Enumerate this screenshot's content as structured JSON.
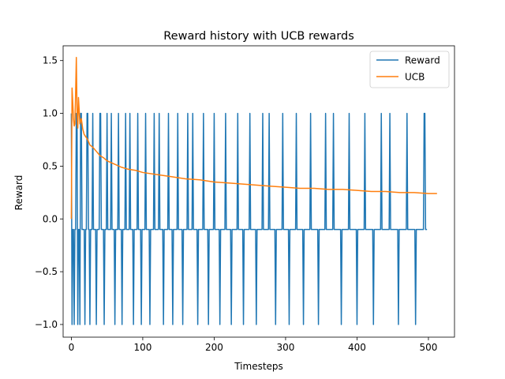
{
  "chart_data": {
    "type": "line",
    "title": "Reward history with UCB rewards",
    "xlabel": "Timesteps",
    "ylabel": "Reward",
    "xlim": [
      -11.5,
      536.5
    ],
    "ylim": [
      -1.12,
      1.64
    ],
    "xticks": [
      0,
      100,
      200,
      300,
      400,
      500
    ],
    "xtick_labels": [
      "0",
      "100",
      "200",
      "300",
      "400",
      "500"
    ],
    "yticks": [
      -1.0,
      -0.5,
      0.0,
      0.5,
      1.0,
      1.5
    ],
    "ytick_labels": [
      "−1.0",
      "−0.5",
      "0.0",
      "0.5",
      "1.0",
      "1.5"
    ],
    "grid": false,
    "legend_position": "upper-right",
    "series": [
      {
        "name": "Reward",
        "color": "#1f77b4",
        "x_start": 0,
        "x_step": 1,
        "values": [
          1,
          -1,
          -0.1,
          -0.1,
          -1,
          -0.1,
          -0.1,
          1,
          1,
          -1,
          -0.1,
          -0.1,
          -1,
          1,
          1,
          -0.1,
          -0.1,
          -0.1,
          -0.1,
          -1,
          -0.1,
          -0.1,
          1,
          1,
          -0.1,
          -0.1,
          -1,
          -0.1,
          -0.1,
          -0.1,
          1,
          -0.1,
          -0.1,
          -0.1,
          -0.1,
          -1,
          -0.1,
          -0.1,
          -0.1,
          -0.1,
          1,
          1,
          -0.1,
          -0.1,
          -0.1,
          -0.1,
          -1,
          -0.1,
          -0.1,
          -0.1,
          1,
          -0.1,
          -0.1,
          -0.1,
          -0.1,
          -0.1,
          1,
          -0.1,
          -0.1,
          -0.1,
          -0.1,
          -1,
          -0.1,
          -0.1,
          -0.1,
          -0.1,
          1,
          -0.1,
          -0.1,
          -0.1,
          -0.1,
          -1,
          -0.1,
          -0.1,
          -0.1,
          -0.1,
          1,
          -0.1,
          -0.1,
          -0.1,
          -0.1,
          -0.1,
          1,
          -0.1,
          -0.1,
          -0.1,
          -0.1,
          -1,
          -0.1,
          -0.1,
          -0.1,
          -0.1,
          -0.1,
          1,
          -0.1,
          -0.1,
          -0.1,
          -0.1,
          -1,
          -0.1,
          -0.1,
          -0.1,
          -0.1,
          -0.1,
          1,
          -0.1,
          -0.1,
          -0.1,
          -0.1,
          -0.1,
          -1,
          -0.1,
          -0.1,
          -0.1,
          -0.1,
          -0.1,
          1,
          -0.1,
          -0.1,
          -0.1,
          -0.1,
          -0.1,
          -0.1,
          1,
          -0.1,
          -0.1,
          -0.1,
          -0.1,
          -0.1,
          -1,
          -0.1,
          -0.1,
          -0.1,
          -0.1,
          -0.1,
          -0.1,
          1,
          -0.1,
          -0.1,
          -0.1,
          -0.1,
          -0.1,
          -1,
          -0.1,
          -0.1,
          -0.1,
          -0.1,
          -0.1,
          -0.1,
          1,
          -0.1,
          -0.1,
          -0.1,
          -0.1,
          -0.1,
          -0.1,
          -1,
          -0.1,
          -0.1,
          -0.1,
          -0.1,
          -0.1,
          -0.1,
          1,
          -0.1,
          -0.1,
          -0.1,
          -0.1,
          -0.1,
          -0.1,
          1,
          -0.1,
          -0.1,
          -0.1,
          -0.1,
          -0.1,
          -0.1,
          -1,
          -0.1,
          -0.1,
          -0.1,
          -0.1,
          -0.1,
          -0.1,
          -0.1,
          1,
          -0.1,
          -0.1,
          -0.1,
          -0.1,
          -0.1,
          -0.1,
          -1,
          -0.1,
          -0.1,
          -0.1,
          -0.1,
          -0.1,
          -0.1,
          -0.1,
          1,
          -0.1,
          -0.1,
          -0.1,
          -0.1,
          -0.1,
          -0.1,
          -0.1,
          -1,
          -0.1,
          -0.1,
          -0.1,
          -0.1,
          -0.1,
          -0.1,
          -0.1,
          1,
          -0.1,
          -0.1,
          -0.1,
          -0.1,
          -0.1,
          -0.1,
          -0.1,
          -1,
          -0.1,
          -0.1,
          -0.1,
          -0.1,
          -0.1,
          -0.1,
          -0.1,
          -0.1,
          1,
          -0.1,
          -0.1,
          -0.1,
          -0.1,
          -0.1,
          -0.1,
          -0.1,
          -1,
          -0.1,
          -0.1,
          -0.1,
          -0.1,
          -0.1,
          -0.1,
          -0.1,
          -0.1,
          1,
          -0.1,
          -0.1,
          -0.1,
          -0.1,
          -0.1,
          -0.1,
          -0.1,
          -0.1,
          -1,
          -0.1,
          -0.1,
          -0.1,
          -0.1,
          -0.1,
          -0.1,
          -0.1,
          -0.1,
          1,
          -0.1,
          -0.1,
          -0.1,
          -0.1,
          -0.1,
          -0.1,
          -0.1,
          -0.1,
          1,
          -0.1,
          -0.1,
          -0.1,
          -0.1,
          -0.1,
          -0.1,
          -0.1,
          -0.1,
          -1,
          -0.1,
          -0.1,
          -0.1,
          -0.1,
          -0.1,
          -0.1,
          -0.1,
          -0.1,
          -0.1,
          1,
          -0.1,
          -0.1,
          -0.1,
          -0.1,
          -0.1,
          -0.1,
          -0.1,
          -0.1,
          -1,
          -0.1,
          -0.1,
          -0.1,
          -0.1,
          -0.1,
          -0.1,
          -0.1,
          -0.1,
          -0.1,
          1,
          -0.1,
          -0.1,
          -0.1,
          -0.1,
          -0.1,
          -0.1,
          -0.1,
          -0.1,
          -0.1,
          -1,
          -0.1,
          -0.1,
          -0.1,
          -0.1,
          -0.1,
          -0.1,
          -0.1,
          -0.1,
          -0.1,
          1,
          -0.1,
          -0.1,
          -0.1,
          -0.1,
          -0.1,
          -0.1,
          -0.1,
          -0.1,
          -0.1,
          -0.1,
          -1,
          -0.1,
          -0.1,
          -0.1,
          -0.1,
          -0.1,
          -0.1,
          -0.1,
          -0.1,
          -0.1,
          1,
          -0.1,
          -0.1,
          -0.1,
          -0.1,
          -0.1,
          -0.1,
          -0.1,
          -0.1,
          -0.1,
          -0.1,
          1,
          -0.1,
          -0.1,
          -0.1,
          -0.1,
          -0.1,
          -0.1,
          -0.1,
          -0.1,
          -0.1,
          -0.1,
          -1,
          -0.1,
          -0.1,
          -0.1,
          -0.1,
          -0.1,
          -0.1,
          -0.1,
          -0.1,
          -0.1,
          -0.1,
          1,
          -0.1,
          -0.1,
          -0.1,
          -0.1,
          -0.1,
          -0.1,
          -0.1,
          -0.1,
          -0.1,
          -0.1,
          -1,
          -0.1,
          -0.1,
          -0.1,
          -0.1,
          -0.1,
          -0.1,
          -0.1,
          -0.1,
          -0.1,
          -0.1,
          1,
          -0.1,
          -0.1,
          -0.1,
          -0.1,
          -0.1,
          -0.1,
          -0.1,
          -0.1,
          -0.1,
          -0.1,
          -0.1,
          -1,
          -0.1,
          -0.1,
          -0.1,
          -0.1,
          -0.1,
          -0.1,
          -0.1,
          -0.1,
          -0.1,
          -0.1,
          1,
          -0.1,
          -0.1,
          -0.1,
          -0.1,
          -0.1,
          -0.1,
          -0.1,
          -0.1,
          -0.1,
          -0.1,
          -0.1,
          1,
          -0.1,
          -0.1,
          -0.1,
          -0.1,
          -0.1,
          -0.1,
          -0.1,
          -0.1,
          -0.1,
          -0.1,
          -0.1,
          -1,
          -0.1,
          -0.1,
          -0.1,
          -0.1,
          -0.1,
          -0.1,
          -0.1,
          -0.1,
          -0.1,
          -0.1,
          -0.1,
          1,
          -0.1,
          -0.1,
          -0.1,
          -0.1,
          -0.1,
          -0.1,
          -0.1,
          -0.1,
          -0.1,
          -0.1,
          -0.1,
          -1,
          -0.1,
          -0.1,
          -0.1,
          -0.1,
          -0.1,
          -0.1,
          -0.1,
          -0.1,
          -0.1,
          -0.1,
          -0.1,
          1,
          1,
          -0.1,
          -0.1,
          -0.1
        ]
      },
      {
        "name": "UCB",
        "color": "#ff7f0e",
        "x": [
          0,
          1,
          2,
          3,
          4,
          5,
          6,
          7,
          8,
          9,
          10,
          12,
          14,
          16,
          18,
          20,
          23,
          26,
          30,
          35,
          40,
          45,
          50,
          60,
          70,
          80,
          90,
          100,
          120,
          140,
          160,
          180,
          200,
          220,
          240,
          260,
          280,
          300,
          320,
          340,
          360,
          380,
          400,
          420,
          440,
          460,
          480,
          500,
          512
        ],
        "values": [
          0,
          1.24,
          1.1,
          0.95,
          0.88,
          0.9,
          1.2,
          1.53,
          1.0,
          0.86,
          1.15,
          0.9,
          0.95,
          0.85,
          0.8,
          0.78,
          0.75,
          0.7,
          0.68,
          0.64,
          0.6,
          0.58,
          0.55,
          0.52,
          0.49,
          0.47,
          0.46,
          0.44,
          0.42,
          0.4,
          0.38,
          0.37,
          0.35,
          0.34,
          0.33,
          0.32,
          0.31,
          0.3,
          0.29,
          0.29,
          0.28,
          0.28,
          0.27,
          0.26,
          0.26,
          0.25,
          0.25,
          0.24,
          0.24
        ]
      }
    ]
  }
}
